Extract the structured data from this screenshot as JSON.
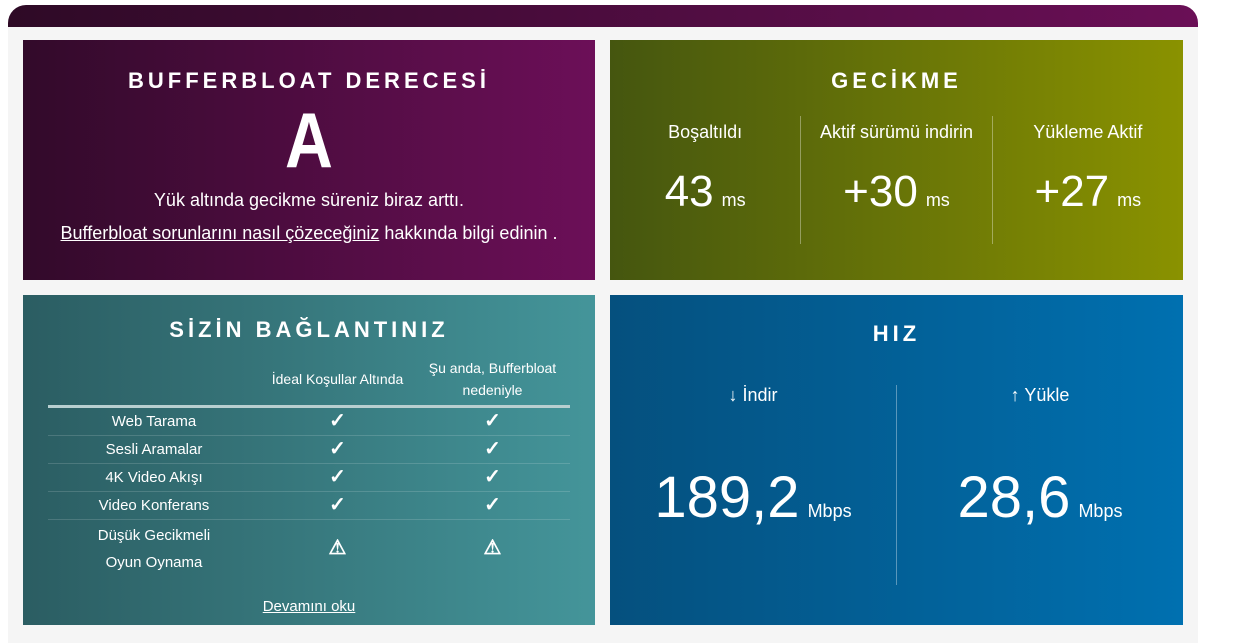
{
  "grade": {
    "title": "BUFFERBLOAT DERECESİ",
    "value": "A",
    "message": "Yük altında gecikme süreniz biraz arttı.",
    "link": "Bufferbloat sorunlarını nasıl çözeceğiniz",
    "link_suffix": " hakkında bilgi edinin ."
  },
  "latency": {
    "title": "GECİKME",
    "items": [
      {
        "label": "Boşaltıldı",
        "value": "43",
        "unit": "ms"
      },
      {
        "label": "Aktif sürümü indirin",
        "value": "+30",
        "unit": "ms"
      },
      {
        "label": "Yükleme Aktif",
        "value": "+27",
        "unit": "ms"
      }
    ]
  },
  "connection": {
    "title": "SİZİN BAĞLANTINIZ",
    "headers": [
      "",
      "İdeal Koşullar Altında",
      "Şu anda, Bufferbloat nedeniyle"
    ],
    "rows": [
      {
        "label": "Web Tarama",
        "ideal": "✓",
        "now": "✓"
      },
      {
        "label": "Sesli Aramalar",
        "ideal": "✓",
        "now": "✓"
      },
      {
        "label": "4K Video Akışı",
        "ideal": "✓",
        "now": "✓"
      },
      {
        "label": "Video Konferans",
        "ideal": "✓",
        "now": "✓"
      },
      {
        "label": "Düşük Gecikmeli Oyun Oynama",
        "ideal": "⚠",
        "now": "⚠"
      }
    ],
    "more": "Devamını oku"
  },
  "speed": {
    "title": "HIZ",
    "download": {
      "label": "↓ İndir",
      "value": "189,2",
      "unit": "Mbps"
    },
    "upload": {
      "label": "↑ Yükle",
      "value": "28,6",
      "unit": "Mbps"
    }
  }
}
